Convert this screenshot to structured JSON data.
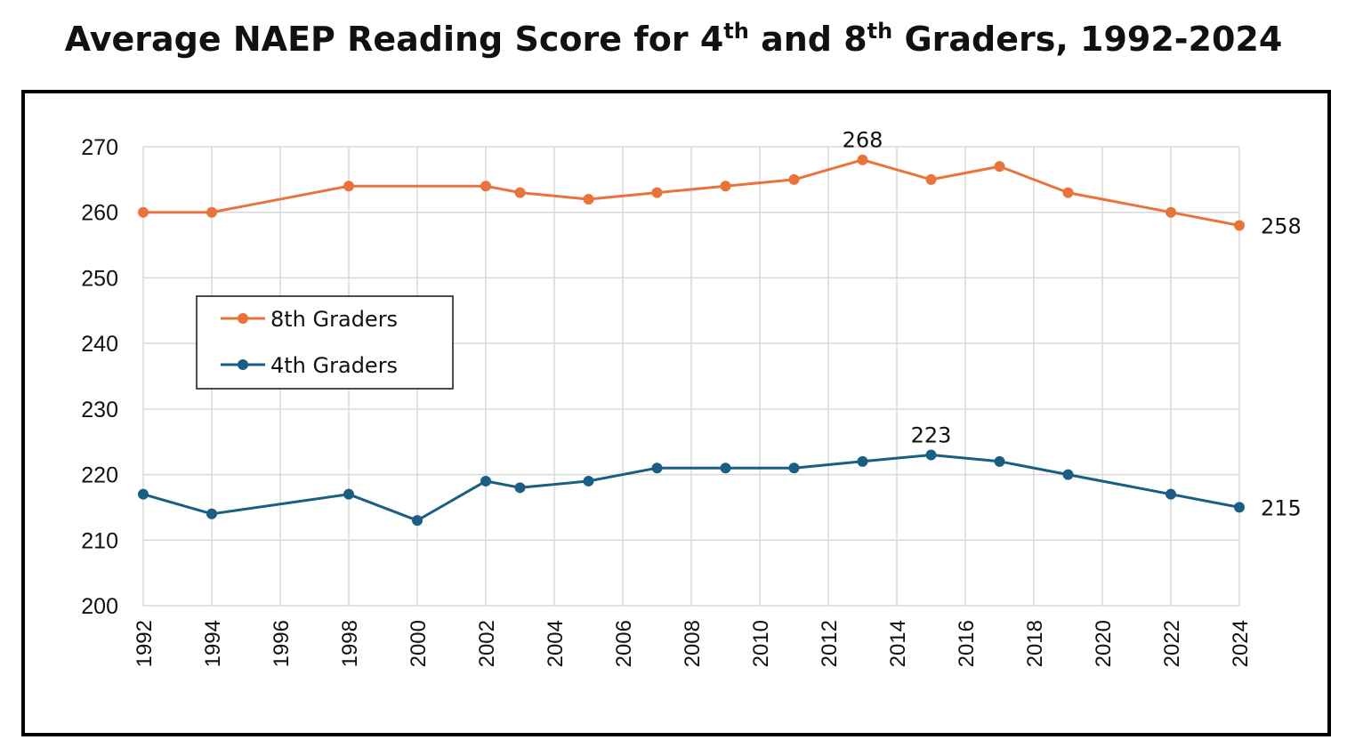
{
  "title": {
    "main_a": "Average NAEP Reading Score for 4",
    "sup_a": "th",
    "main_b": " and 8",
    "sup_b": "th",
    "main_c": " Graders, 1992-2024"
  },
  "colors": {
    "eighth": "#E8743B",
    "fourth": "#1B5E83",
    "grid": "#D9D9D9"
  },
  "chart_data": {
    "type": "line",
    "title": "Average NAEP Reading Score for 4th and 8th Graders, 1992-2024",
    "xlabel": "",
    "ylabel": "",
    "xlim": [
      1992,
      2024
    ],
    "ylim": [
      200,
      270
    ],
    "x_ticks": [
      1992,
      1994,
      1996,
      1998,
      2000,
      2002,
      2004,
      2006,
      2008,
      2010,
      2012,
      2014,
      2016,
      2018,
      2020,
      2022,
      2024
    ],
    "y_ticks": [
      200,
      210,
      220,
      230,
      240,
      250,
      260,
      270
    ],
    "grid": true,
    "legend_position": "left-middle",
    "series": [
      {
        "name": "8th Graders",
        "color": "#E8743B",
        "x": [
          1992,
          1994,
          1998,
          2002,
          2003,
          2005,
          2007,
          2009,
          2011,
          2013,
          2015,
          2017,
          2019,
          2022,
          2024
        ],
        "values": [
          260,
          260,
          264,
          264,
          263,
          262,
          263,
          264,
          265,
          268,
          265,
          267,
          263,
          260,
          258
        ]
      },
      {
        "name": "4th Graders",
        "color": "#1B5E83",
        "x": [
          1992,
          1994,
          1998,
          2000,
          2002,
          2003,
          2005,
          2007,
          2009,
          2011,
          2013,
          2015,
          2017,
          2019,
          2022,
          2024
        ],
        "values": [
          217,
          214,
          217,
          213,
          219,
          218,
          219,
          221,
          221,
          221,
          222,
          223,
          222,
          220,
          217,
          215
        ]
      }
    ],
    "annotations": [
      {
        "series": 0,
        "x": 2013,
        "text": "268",
        "placement": "above"
      },
      {
        "series": 0,
        "x": 2024,
        "text": "258",
        "placement": "right"
      },
      {
        "series": 1,
        "x": 2015,
        "text": "223",
        "placement": "above"
      },
      {
        "series": 1,
        "x": 2024,
        "text": "215",
        "placement": "right"
      }
    ]
  }
}
